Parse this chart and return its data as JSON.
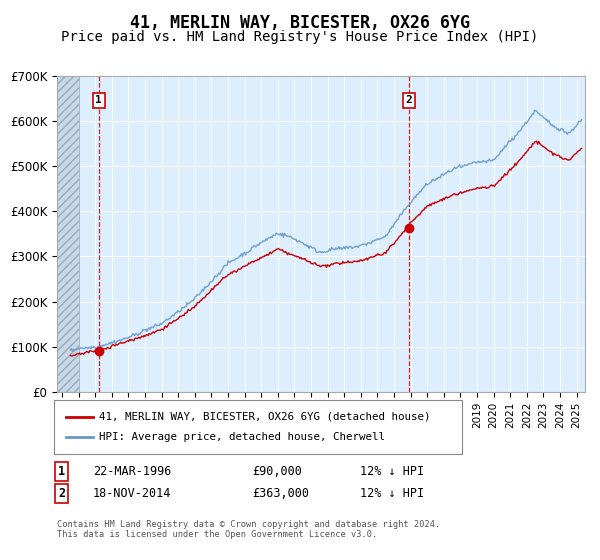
{
  "title": "41, MERLIN WAY, BICESTER, OX26 6YG",
  "subtitle": "Price paid vs. HM Land Registry's House Price Index (HPI)",
  "ylim": [
    0,
    700000
  ],
  "yticks": [
    0,
    100000,
    200000,
    300000,
    400000,
    500000,
    600000,
    700000
  ],
  "ytick_labels": [
    "£0",
    "£100K",
    "£200K",
    "£300K",
    "£400K",
    "£500K",
    "£600K",
    "£700K"
  ],
  "xlim_start": 1993.7,
  "xlim_end": 2025.5,
  "transaction1_date": 1996.22,
  "transaction1_price": 90000,
  "transaction2_date": 2014.89,
  "transaction2_price": 363000,
  "hatch_end": 1995.0,
  "red_line_color": "#cc0000",
  "blue_line_color": "#6699cc",
  "dot_color": "#cc0000",
  "background_color": "#ddeeff",
  "legend_label_red": "41, MERLIN WAY, BICESTER, OX26 6YG (detached house)",
  "legend_label_blue": "HPI: Average price, detached house, Cherwell",
  "table_row1": [
    "1",
    "22-MAR-1996",
    "£90,000",
    "12% ↓ HPI"
  ],
  "table_row2": [
    "2",
    "18-NOV-2014",
    "£363,000",
    "12% ↓ HPI"
  ],
  "footer": "Contains HM Land Registry data © Crown copyright and database right 2024.\nThis data is licensed under the Open Government Licence v3.0.",
  "title_fontsize": 12,
  "subtitle_fontsize": 10
}
